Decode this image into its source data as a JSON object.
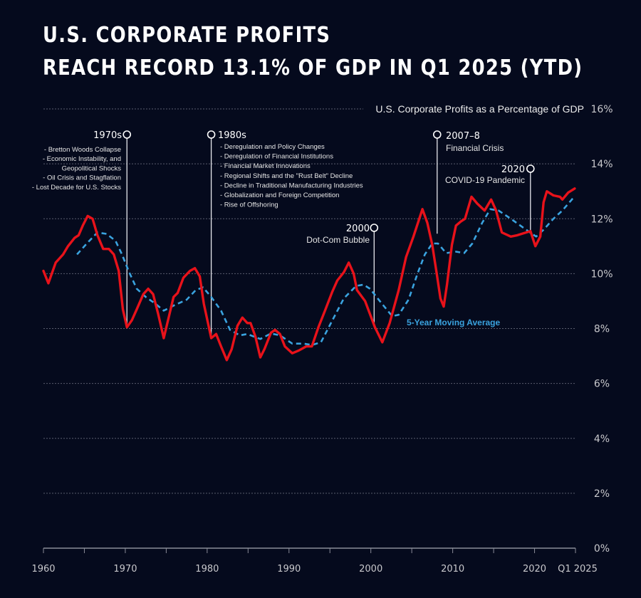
{
  "title_line1": "U.S. CORPORATE PROFITS",
  "title_line2": "REACH RECORD 13.1% OF GDP IN Q1 2025 (YTD)",
  "colors": {
    "background": "#050a1d",
    "profits": "#e8121a",
    "moving_average": "#3aa3df",
    "grid": "#5a5d6e"
  },
  "chart_data": {
    "type": "line",
    "title": "U.S. Corporate Profits as a Percentage of GDP",
    "xlabel": "",
    "ylabel": "",
    "xlim": [
      1960,
      2025
    ],
    "ylim": [
      0,
      16
    ],
    "grid": true,
    "y_ticks": [
      0,
      2,
      4,
      6,
      8,
      10,
      12,
      14,
      16
    ],
    "y_tick_labels": [
      "0%",
      "2%",
      "4%",
      "6%",
      "8%",
      "10%",
      "12%",
      "14%",
      "16%"
    ],
    "x_ticks_minor": [
      1960,
      1965,
      1970,
      1975,
      1980,
      1985,
      1990,
      1995,
      2000,
      2005,
      2010,
      2015,
      2020,
      2025
    ],
    "x_tick_labels": [
      {
        "value": 1960,
        "label": "1960"
      },
      {
        "value": 1970,
        "label": "1970"
      },
      {
        "value": 1980,
        "label": "1980"
      },
      {
        "value": 1990,
        "label": "1990"
      },
      {
        "value": 2000,
        "label": "2000"
      },
      {
        "value": 2010,
        "label": "2010"
      },
      {
        "value": 2020,
        "label": "2020"
      },
      {
        "value": 2025,
        "label": "Q1 2025"
      }
    ],
    "series": [
      {
        "name": "U.S. Corporate Profits as a Percentage of GDP",
        "style": "solid",
        "x": [
          1960.0,
          1960.6,
          1961.5,
          1962.4,
          1963.0,
          1963.8,
          1964.3,
          1964.8,
          1965.4,
          1966.0,
          1966.6,
          1967.3,
          1968.0,
          1968.6,
          1969.2,
          1969.7,
          1970.2,
          1970.8,
          1971.4,
          1972.2,
          1972.8,
          1973.4,
          1974.0,
          1974.7,
          1975.3,
          1975.9,
          1976.4,
          1977.1,
          1977.9,
          1978.5,
          1979.1,
          1979.6,
          1980.5,
          1981.1,
          1981.7,
          1982.4,
          1983.0,
          1983.7,
          1984.3,
          1984.9,
          1985.3,
          1985.9,
          1986.5,
          1987.0,
          1987.8,
          1988.3,
          1988.9,
          1989.5,
          1990.4,
          1991.2,
          1992.1,
          1992.8,
          1993.6,
          1994.4,
          1995.3,
          1995.9,
          1996.7,
          1997.3,
          1997.9,
          1998.3,
          1999.3,
          2000.5,
          2001.4,
          2002.3,
          2003.4,
          2004.3,
          2005.2,
          2006.3,
          2006.9,
          2007.5,
          2008.0,
          2008.5,
          2008.9,
          2009.3,
          2009.9,
          2010.4,
          2011.0,
          2011.5,
          2012.3,
          2013.0,
          2013.9,
          2014.7,
          2015.3,
          2016.0,
          2017.1,
          2017.9,
          2019.5,
          2020.1,
          2020.7,
          2021.1,
          2021.5,
          2022.3,
          2023.1,
          2023.4,
          2024.1,
          2024.9
        ],
        "values": [
          10.1,
          9.65,
          10.4,
          10.7,
          11.0,
          11.3,
          11.4,
          11.75,
          12.1,
          12.0,
          11.4,
          10.9,
          10.9,
          10.7,
          10.1,
          8.7,
          8.05,
          8.3,
          8.7,
          9.25,
          9.45,
          9.25,
          8.55,
          7.65,
          8.4,
          9.15,
          9.3,
          9.85,
          10.1,
          10.2,
          9.9,
          8.9,
          7.65,
          7.8,
          7.35,
          6.85,
          7.25,
          8.1,
          8.4,
          8.2,
          8.2,
          7.7,
          6.95,
          7.25,
          7.85,
          7.95,
          7.8,
          7.35,
          7.1,
          7.2,
          7.35,
          7.35,
          8.05,
          8.65,
          9.35,
          9.75,
          10.05,
          10.4,
          10.0,
          9.4,
          9.0,
          8.05,
          7.5,
          8.2,
          9.4,
          10.6,
          11.35,
          12.35,
          11.85,
          11.05,
          10.1,
          9.1,
          8.8,
          9.6,
          11.05,
          11.75,
          11.9,
          12.0,
          12.8,
          12.55,
          12.3,
          12.7,
          12.3,
          11.5,
          11.35,
          11.4,
          11.55,
          11.0,
          11.35,
          12.6,
          13.0,
          12.85,
          12.8,
          12.7,
          12.95,
          13.1
        ]
      },
      {
        "name": "5-Year Moving Average",
        "style": "dashed",
        "x": [
          1964.1,
          1965.3,
          1966.6,
          1967.7,
          1968.8,
          1969.6,
          1970.4,
          1971.4,
          1972.5,
          1973.7,
          1974.7,
          1976.0,
          1977.5,
          1978.6,
          1979.5,
          1980.5,
          1981.7,
          1982.8,
          1984.0,
          1984.9,
          1986.5,
          1987.8,
          1988.9,
          1990.4,
          1991.8,
          1992.8,
          1993.9,
          1995.3,
          1996.7,
          1998.2,
          1999.1,
          1999.9,
          2001.1,
          2002.6,
          2003.4,
          2004.6,
          2005.7,
          2006.6,
          2007.5,
          2008.2,
          2009.2,
          2010.4,
          2011.4,
          2012.4,
          2013.6,
          2014.6,
          2015.6,
          2017.1,
          2018.5,
          2019.7,
          2020.2,
          2021.1,
          2022.3,
          2023.4,
          2024.7
        ],
        "values": [
          10.7,
          11.1,
          11.5,
          11.45,
          11.2,
          10.7,
          10.1,
          9.45,
          9.15,
          8.9,
          8.65,
          8.85,
          9.05,
          9.4,
          9.5,
          9.15,
          8.65,
          7.95,
          7.75,
          7.8,
          7.62,
          7.82,
          7.75,
          7.45,
          7.45,
          7.4,
          7.5,
          8.3,
          9.1,
          9.55,
          9.6,
          9.45,
          9.0,
          8.45,
          8.5,
          9.05,
          10.0,
          10.7,
          11.1,
          11.1,
          10.75,
          10.8,
          10.75,
          11.1,
          11.85,
          12.35,
          12.3,
          12.0,
          11.7,
          11.45,
          11.35,
          11.6,
          12.0,
          12.3,
          12.75
        ]
      }
    ],
    "series_label": "5-Year Moving Average",
    "annotations": [
      {
        "year": 1970.2,
        "title": "1970s",
        "lines": [
          "- Bretton Woods Collapse",
          "- Economic Instability, and",
          "Geopolitical Shocks",
          "- Oil Crisis and Stagflation",
          "- Lost Decade for U.S. Stocks"
        ]
      },
      {
        "year": 1980.5,
        "title": "1980s",
        "lines": [
          "- Deregulation and Policy Changes",
          "- Deregulation of Financial Institutions",
          "- Financial Market Innovations",
          "- Regional Shifts and the \"Rust Belt\" Decline",
          "- Decline in Traditional Manufacturing Industries",
          "- Globalization and Foreign Competition",
          "- Rise of Offshoring"
        ]
      },
      {
        "year": 2000.4,
        "title": "2000",
        "lines": [
          "Dot-Com Bubble"
        ]
      },
      {
        "year": 2008.1,
        "title": "2007–8",
        "lines": [
          "Financial Crisis"
        ]
      },
      {
        "year": 2019.5,
        "title": "2020",
        "lines": [
          "COVID-19 Pandemic"
        ]
      }
    ]
  }
}
